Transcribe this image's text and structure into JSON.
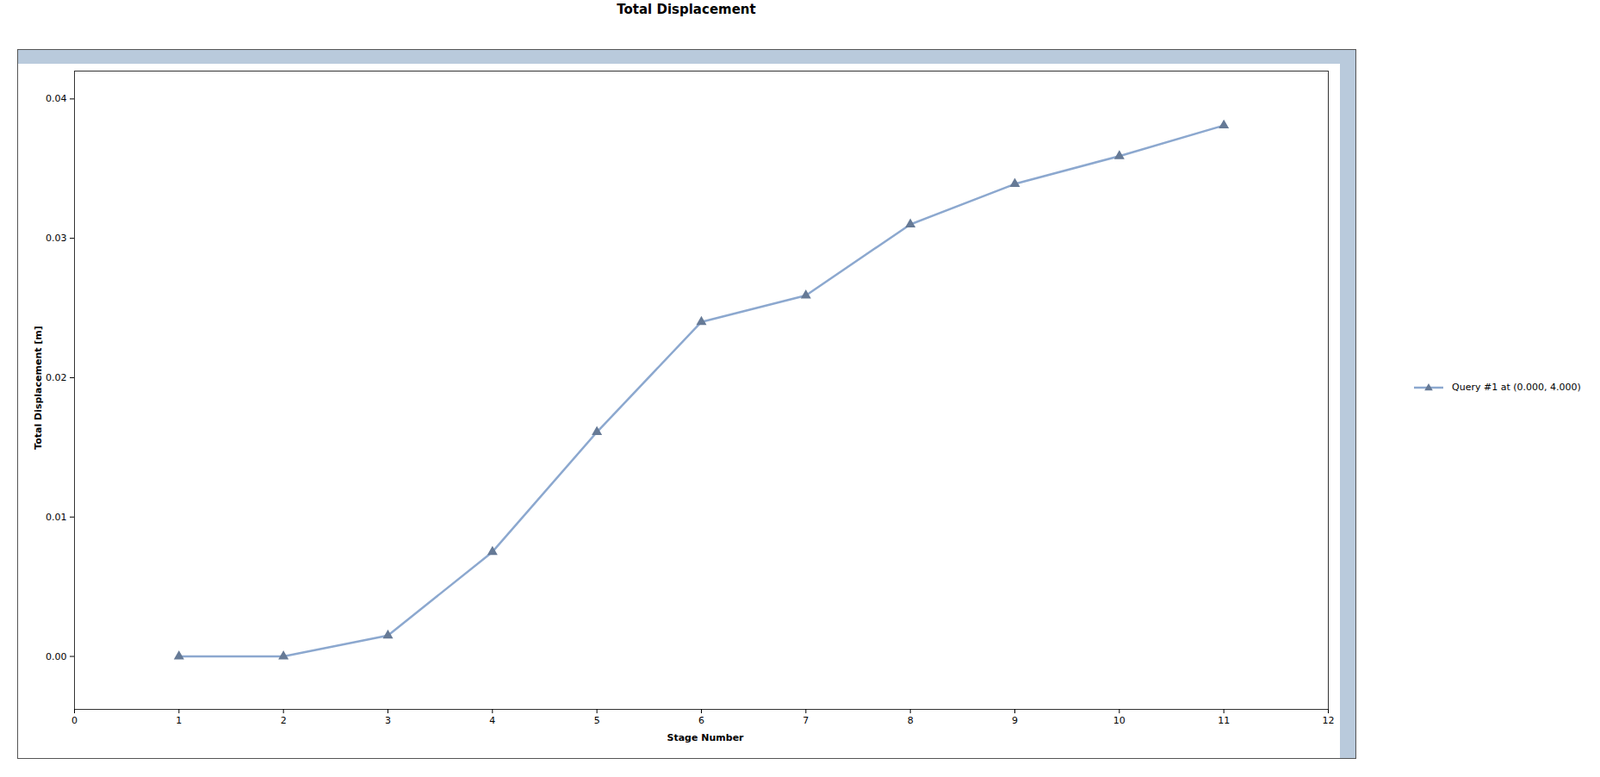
{
  "chart_data": {
    "type": "line",
    "title": "Total Displacement",
    "x_label": "Stage Number",
    "y_label": "Total Displacement [m]",
    "x": [
      1,
      2,
      3,
      4,
      5,
      6,
      7,
      8,
      9,
      10,
      11
    ],
    "series": [
      {
        "name": "Query #1 at (0.000, 4.000)",
        "color": "#8ca8cf",
        "marker": "triangle",
        "line_style": "solid",
        "values": [
          0.0,
          0.0,
          0.0015,
          0.0075,
          0.0161,
          0.024,
          0.0259,
          0.031,
          0.0339,
          0.0359,
          0.0381
        ]
      }
    ],
    "xlim": [
      0,
      12
    ],
    "xticks": [
      0,
      1,
      2,
      3,
      4,
      5,
      6,
      7,
      8,
      9,
      10,
      11,
      12
    ],
    "ylim": [
      -0.0038,
      0.042
    ],
    "yticks": [
      {
        "value": 0,
        "label": "0.00"
      },
      0.01,
      0.02,
      0.03,
      0.04
    ],
    "grid": false,
    "legend": "right"
  }
}
